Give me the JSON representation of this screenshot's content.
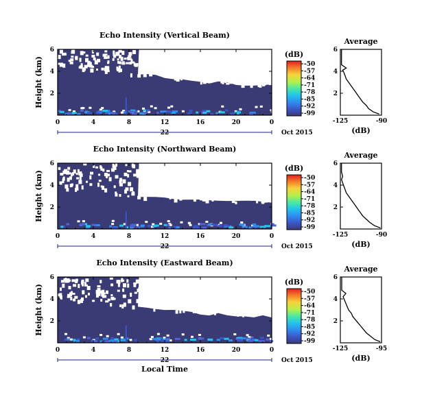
{
  "chart_data": [
    {
      "type": "heatmap",
      "title": "Echo Intensity (Vertical Beam)",
      "xlabel": "Local Time",
      "ylabel": "Height (km)",
      "x_ticks": [
        "0",
        "4",
        "8",
        "12",
        "16",
        "20",
        "0"
      ],
      "x_range": [
        0,
        24
      ],
      "y_ticks": [
        "2",
        "4",
        "6"
      ],
      "y_range": [
        0,
        6
      ],
      "day_label": "22",
      "month_label": "Oct 2015",
      "colorbar": {
        "label": "(dB)",
        "ticks": [
          "-50",
          "-57",
          "-64",
          "-71",
          "-78",
          "-85",
          "-92",
          "-99"
        ],
        "range": [
          -99,
          -50
        ]
      },
      "gap_top_km": [
        4.7,
        4.6,
        4.4,
        4.3,
        4.1,
        4.0,
        4.0,
        3.9,
        3.8,
        3.7,
        3.7,
        3.6,
        3.5,
        3.3,
        3.2,
        3.1,
        3.0,
        3.0,
        3.0,
        2.9,
        2.8,
        2.8,
        2.7,
        2.7,
        2.7
      ],
      "gap_top_start_km": 4.7,
      "gap_top_end_km": 2.7,
      "profile": {
        "title": "Average",
        "xlabel": "(dB)",
        "x_ticks": [
          "-125",
          "-90"
        ],
        "x_range": [
          -125,
          -90
        ],
        "y_ticks": [
          "2",
          "4",
          "6"
        ],
        "y_range": [
          0,
          6
        ],
        "height_km": [
          0.1,
          0.3,
          0.6,
          0.9,
          1.2,
          1.5,
          1.8,
          2.1,
          2.4,
          2.7,
          3.0,
          3.3,
          3.6,
          3.9,
          4.1,
          4.3,
          4.6,
          5.0,
          5.5,
          6.0
        ],
        "value_db": [
          -92,
          -97,
          -101,
          -103,
          -106,
          -108,
          -110,
          -112,
          -114,
          -116,
          -118,
          -120,
          -121,
          -122,
          -123,
          -120,
          -124,
          -124,
          -124,
          -124
        ]
      }
    },
    {
      "type": "heatmap",
      "title": "Echo Intensity (Northward Beam)",
      "xlabel": "Local Time",
      "ylabel": "Height (km)",
      "x_ticks": [
        "0",
        "4",
        "8",
        "12",
        "16",
        "20",
        "0"
      ],
      "x_range": [
        0,
        24
      ],
      "y_ticks": [
        "2",
        "4",
        "6"
      ],
      "y_range": [
        0,
        6
      ],
      "day_label": "22",
      "month_label": "Oct 2015",
      "colorbar": {
        "label": "(dB)",
        "ticks": [
          "-50",
          "-57",
          "-64",
          "-71",
          "-78",
          "-85",
          "-92",
          "-99"
        ],
        "range": [
          -99,
          -50
        ]
      },
      "gap_top_km": [
        3.7,
        3.6,
        3.5,
        3.4,
        3.3,
        3.3,
        3.2,
        3.1,
        3.0,
        3.0,
        2.9,
        2.9,
        2.8,
        2.7,
        2.7,
        2.6,
        2.6,
        2.6,
        2.6,
        2.5,
        2.5,
        2.5,
        2.5,
        2.4,
        2.4
      ],
      "gap_top_start_km": 3.7,
      "gap_top_end_km": 2.4,
      "profile": {
        "title": "Average",
        "xlabel": "(dB)",
        "x_ticks": [
          "-125",
          "-90"
        ],
        "x_range": [
          -125,
          -90
        ],
        "y_ticks": [
          "2",
          "4",
          "6"
        ],
        "y_range": [
          0,
          6
        ],
        "height_km": [
          0.1,
          0.3,
          0.6,
          0.9,
          1.2,
          1.5,
          1.8,
          2.1,
          2.4,
          2.7,
          3.0,
          3.3,
          3.6,
          3.9,
          4.2,
          4.5,
          4.8,
          5.2,
          5.6,
          6.0
        ],
        "value_db": [
          -91,
          -96,
          -100,
          -103,
          -106,
          -108,
          -110,
          -112,
          -114,
          -116,
          -118,
          -120,
          -121,
          -122,
          -123,
          -124,
          -123,
          -124,
          -124,
          -124
        ]
      }
    },
    {
      "type": "heatmap",
      "title": "Echo Intensity (Eastward Beam)",
      "xlabel": "Local Time",
      "ylabel": "Height (km)",
      "x_ticks": [
        "0",
        "4",
        "8",
        "12",
        "16",
        "20",
        "0"
      ],
      "x_range": [
        0,
        24
      ],
      "y_ticks": [
        "2",
        "4",
        "6"
      ],
      "y_range": [
        0,
        6
      ],
      "day_label": "22",
      "month_label": "Oct 2015",
      "colorbar": {
        "label": "(dB)",
        "ticks": [
          "-50",
          "-57",
          "-64",
          "-71",
          "-78",
          "-85",
          "-92",
          "-99"
        ],
        "range": [
          -99,
          -50
        ]
      },
      "gap_top_km": [
        4.1,
        4.0,
        3.9,
        3.8,
        3.7,
        3.6,
        3.5,
        3.4,
        3.3,
        3.2,
        3.2,
        3.1,
        3.0,
        2.9,
        2.8,
        2.7,
        2.7,
        2.6,
        2.6,
        2.5,
        2.5,
        2.4,
        2.4,
        2.4,
        2.4
      ],
      "gap_top_start_km": 4.1,
      "gap_top_end_km": 2.4,
      "profile": {
        "title": "Average",
        "xlabel": "(dB)",
        "x_ticks": [
          "-125",
          "-95"
        ],
        "x_range": [
          -125,
          -95
        ],
        "y_ticks": [
          "2",
          "4",
          "6"
        ],
        "y_range": [
          0,
          6
        ],
        "height_km": [
          0.1,
          0.3,
          0.6,
          0.9,
          1.2,
          1.5,
          1.8,
          2.1,
          2.4,
          2.7,
          3.0,
          3.3,
          3.6,
          3.9,
          4.2,
          4.5,
          4.8,
          5.2,
          5.6,
          6.0
        ],
        "value_db": [
          -96,
          -100,
          -103,
          -106,
          -108,
          -110,
          -112,
          -114,
          -116,
          -117,
          -119,
          -120,
          -121,
          -122,
          -123,
          -121,
          -124,
          -124,
          -124,
          -124
        ]
      }
    }
  ],
  "colors": {
    "background_echo": "#3a3b75",
    "gap": "#ffffff",
    "colorbar_scale": [
      "#3b3b76",
      "#3b55c8",
      "#2e8ef0",
      "#22c6e8",
      "#4ee8a0",
      "#b4f04a",
      "#f6d43a",
      "#f47a2a",
      "#e02020"
    ]
  }
}
